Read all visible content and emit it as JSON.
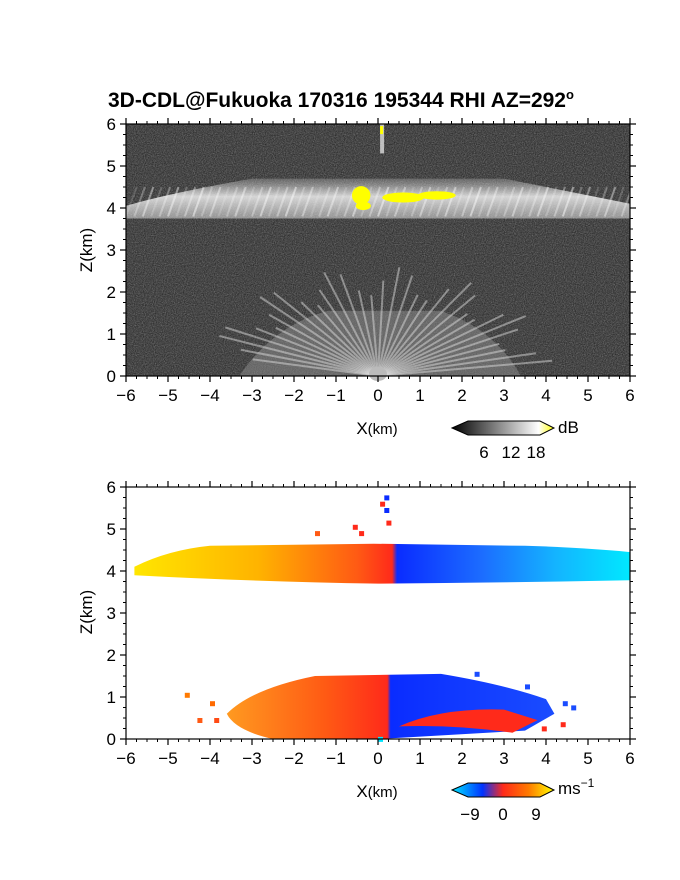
{
  "title": "3D-CDL@Fukuoka 170316 195344 RHI AZ=292",
  "title_degree": "o",
  "chart_data": [
    {
      "type": "heatmap",
      "name": "intensity",
      "xlabel": "X",
      "xlabel_unit": "(km)",
      "ylabel": "Z(km)",
      "xlim": [
        -6,
        6
      ],
      "ylim": [
        0,
        6
      ],
      "xticks": [
        "−6",
        "−5",
        "−4",
        "−3",
        "−2",
        "−1",
        "0",
        "1",
        "2",
        "3",
        "4",
        "5",
        "6"
      ],
      "yticks": [
        "0",
        "1",
        "2",
        "3",
        "4",
        "5",
        "6"
      ],
      "layers": [
        {
          "z_min": 3.75,
          "z_max": 4.7,
          "x_min": -6,
          "x_max": 6
        },
        {
          "z_min": 0,
          "z_max": 1.55,
          "x_min": -3.3,
          "x_max": 3.4
        }
      ],
      "colorbar": {
        "unit": "dB",
        "ticks": [
          "6",
          "12",
          "18"
        ],
        "colors": [
          "#000000",
          "#ffffff",
          "#ffff00"
        ]
      }
    },
    {
      "type": "heatmap",
      "name": "doppler-velocity",
      "xlabel": "X",
      "xlabel_unit": "(km)",
      "ylabel": "Z(km)",
      "xlim": [
        -6,
        6
      ],
      "ylim": [
        0,
        6
      ],
      "xticks": [
        "−6",
        "−5",
        "−4",
        "−3",
        "−2",
        "−1",
        "0",
        "1",
        "2",
        "3",
        "4",
        "5",
        "6"
      ],
      "yticks": [
        "0",
        "1",
        "2",
        "3",
        "4",
        "5",
        "6"
      ],
      "layers": [
        {
          "z_min": 3.7,
          "z_max": 4.7,
          "x_min": -5.8,
          "x_max": 6
        },
        {
          "z_min": 0,
          "z_max": 1.55,
          "x_min": -4,
          "x_max": 4.5
        }
      ],
      "colorbar": {
        "unit": "ms",
        "unit_exponent": "−1",
        "ticks": [
          "−9",
          "0",
          "9"
        ],
        "colors": [
          "#00e5ff",
          "#0033ff",
          "#ff2a1a",
          "#ffff00"
        ]
      }
    }
  ]
}
